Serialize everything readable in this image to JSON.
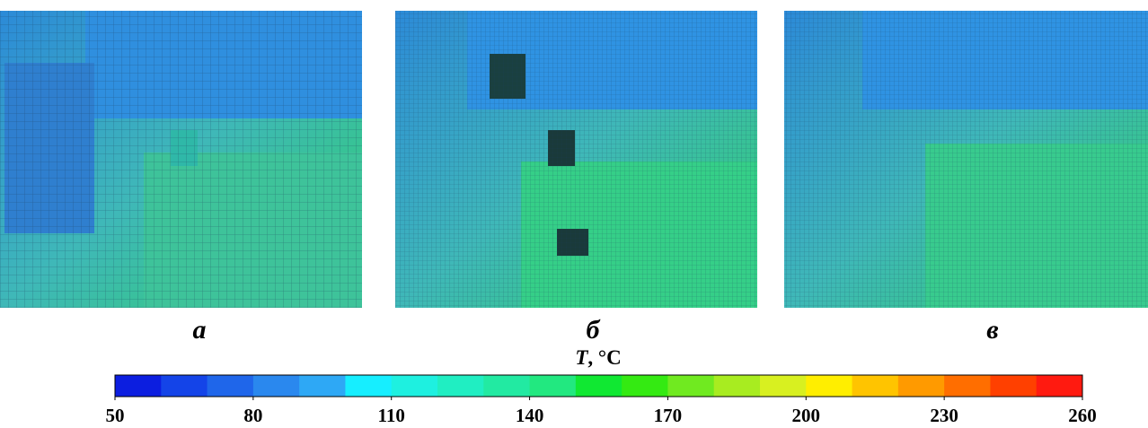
{
  "panels": [
    {
      "label": "а"
    },
    {
      "label": "б"
    },
    {
      "label": "в"
    }
  ],
  "colorbar": {
    "title_symbol": "T",
    "title_unit": ", °C",
    "range": [
      50,
      260
    ],
    "ticks": [
      50,
      80,
      110,
      140,
      170,
      200,
      230,
      260
    ],
    "colors": [
      "#0c1ee0",
      "#1444e8",
      "#1f66ea",
      "#2a88ee",
      "#2ea8f5",
      "#16eeff",
      "#1ef0e0",
      "#20eec2",
      "#22eaa2",
      "#22e880",
      "#10e832",
      "#34ea12",
      "#70ea20",
      "#a8ec20",
      "#d8f020",
      "#ffee00",
      "#ffc400",
      "#ff9a00",
      "#ff6e00",
      "#ff4000",
      "#ff1a10"
    ]
  }
}
